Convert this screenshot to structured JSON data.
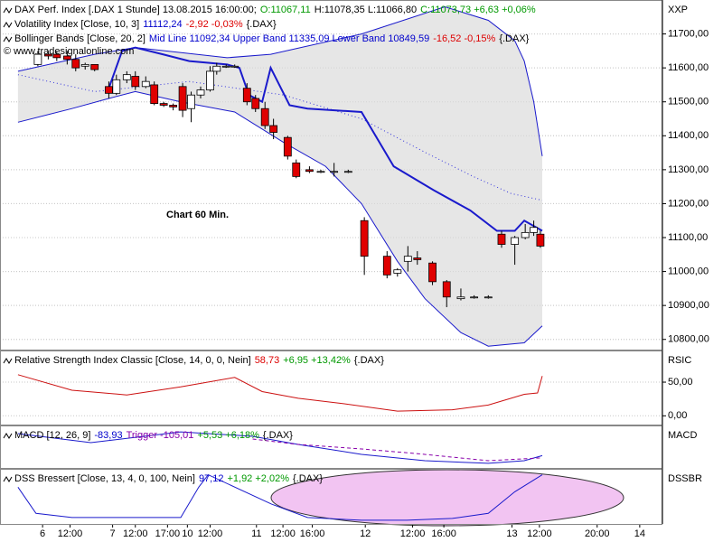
{
  "chart_data": [
    {
      "type": "candlestick",
      "headers": [
        [
          {
            "text": "DAX Perf. Index [.DAX  1 Stunde] 13.08.2015 16:00:00;",
            "color": "#000000"
          },
          {
            "text": "O:11067,11",
            "color": "#009900"
          },
          {
            "text": "H:11078,35 L:11066,80",
            "color": "#000000"
          },
          {
            "text": "C:11073,73 +6,63 +0,06%",
            "color": "#009900"
          }
        ],
        [
          {
            "text": "Volatility Index [Close, 10, 3]",
            "color": "#000000"
          },
          {
            "text": "11112,24",
            "color": "#0000cc"
          },
          {
            "text": "-2,92 -0,03%",
            "color": "#dd0000"
          },
          {
            "text": "{.DAX}",
            "color": "#000000"
          }
        ],
        [
          {
            "text": "Bollinger Bands [Close, 20, 2]",
            "color": "#000000"
          },
          {
            "text": "Mid Line 11092,34 Upper Band 11335,09 Lower Band 10849,59",
            "color": "#0000cc"
          },
          {
            "text": "-16,52 -0,15%",
            "color": "#dd0000"
          },
          {
            "text": "{.DAX}",
            "color": "#000000"
          }
        ]
      ],
      "watermark": "© www.tradesignalonline.com",
      "annotation": "Chart 60 Min.",
      "axis_code": "XXP",
      "xlim": [
        0,
        70
      ],
      "ylim": [
        10770,
        11800
      ],
      "yticks": [
        {
          "value": 10800,
          "label": "10800,00"
        },
        {
          "value": 10900,
          "label": "10900,00"
        },
        {
          "value": 11000,
          "label": "11000,00"
        },
        {
          "value": 11100,
          "label": "11100,00"
        },
        {
          "value": 11200,
          "label": "11200,00"
        },
        {
          "value": 11300,
          "label": "11300,00"
        },
        {
          "value": 11400,
          "label": "11400,00"
        },
        {
          "value": 11500,
          "label": "11500,00"
        },
        {
          "value": 11600,
          "label": "11600,00"
        },
        {
          "value": 11700,
          "label": "11700,00"
        }
      ],
      "grid": true,
      "up_color": "#ffffff",
      "down_color": "#e00000",
      "band_fill": "#e6e6e6",
      "candles": {
        "x": [
          4.0,
          5.1,
          6.0,
          7.1,
          8.0,
          9.0,
          10.0,
          11.5,
          12.3,
          13.4,
          14.3,
          15.4,
          16.3,
          17.3,
          18.3,
          19.3,
          20.2,
          21.2,
          22.2,
          22.9,
          23.9,
          24.8,
          26.1,
          27.0,
          28.0,
          28.9,
          30.4,
          31.3,
          32.7,
          33.9,
          35.3,
          36.8,
          38.5,
          40.9,
          42.0,
          43.1,
          44.1,
          45.7,
          47.2,
          48.7,
          50.1,
          51.6,
          53.0,
          54.4,
          55.5,
          56.4,
          57.1
        ],
        "open": [
          11610,
          11640,
          11640,
          11635,
          11625,
          11605,
          11610,
          11545,
          11525,
          11565,
          11575,
          11545,
          11550,
          11495,
          11490,
          11545,
          11480,
          11520,
          11535,
          11590,
          11605,
          11605,
          11540,
          11510,
          11480,
          11430,
          11395,
          11320,
          11300,
          11295,
          11295,
          11295,
          11150,
          11045,
          10995,
          11030,
          11040,
          11025,
          10970,
          10920,
          10925,
          10925,
          11110,
          11080,
          11100,
          11115,
          11110
        ],
        "high": [
          11650,
          11650,
          11650,
          11650,
          11640,
          11615,
          11610,
          11560,
          11580,
          11590,
          11590,
          11575,
          11560,
          11500,
          11495,
          11555,
          11530,
          11545,
          11605,
          11615,
          11610,
          11610,
          11555,
          11520,
          11500,
          11450,
          11400,
          11330,
          11310,
          11300,
          11320,
          11300,
          11160,
          11060,
          11010,
          11075,
          11060,
          11030,
          10975,
          10950,
          10930,
          10930,
          11120,
          11105,
          11140,
          11150,
          11120
        ],
        "low": [
          11605,
          11625,
          11620,
          11610,
          11590,
          11595,
          11590,
          11510,
          11520,
          11555,
          11535,
          11540,
          11490,
          11485,
          11475,
          11455,
          11440,
          11510,
          11530,
          11580,
          11600,
          11600,
          11490,
          11470,
          11420,
          11390,
          11330,
          11275,
          11290,
          11290,
          11280,
          11290,
          10990,
          10980,
          10985,
          11000,
          11020,
          10960,
          10895,
          10915,
          10920,
          10920,
          11070,
          11020,
          11095,
          11105,
          11070
        ],
        "close": [
          11640,
          11635,
          11630,
          11625,
          11600,
          11610,
          11595,
          11525,
          11565,
          11580,
          11545,
          11560,
          11495,
          11490,
          11485,
          11475,
          11520,
          11535,
          11590,
          11605,
          11605,
          11605,
          11500,
          11480,
          11430,
          11410,
          11340,
          11280,
          11295,
          11295,
          11295,
          11295,
          11045,
          10990,
          11005,
          11045,
          11035,
          10970,
          10925,
          10925,
          10925,
          10925,
          11080,
          11100,
          11115,
          11130,
          11075
        ]
      },
      "bands": {
        "upper": {
          "color": "#1a1acc",
          "x": [
            1.9,
            10,
            14.3,
            24,
            28.6,
            38.2,
            47,
            51.6,
            54.4,
            55.4,
            56.4,
            57.3
          ],
          "values": [
            11590,
            11640,
            11660,
            11630,
            11640,
            11700,
            11780,
            11740,
            11680,
            11620,
            11500,
            11340
          ]
        },
        "lower": {
          "color": "#1a1acc",
          "x": [
            1.9,
            7.6,
            11.5,
            14.3,
            19.1,
            24.8,
            30,
            34.4,
            38.2,
            42,
            44.9,
            48.7,
            51.6,
            55.4,
            57.3
          ],
          "values": [
            11440,
            11480,
            11510,
            11530,
            11500,
            11470,
            11380,
            11310,
            11200,
            11030,
            10920,
            10820,
            10780,
            10790,
            10840
          ]
        }
      },
      "series": [
        {
          "color": "#3333dd",
          "style": "dotted",
          "x": [
            1.9,
            10,
            20,
            30,
            38.2,
            45,
            50,
            54,
            57.3
          ],
          "values": [
            11580,
            11530,
            11560,
            11520,
            11450,
            11350,
            11280,
            11230,
            11210
          ]
        },
        {
          "color": "#1a1acc",
          "style": "thick",
          "x": [
            11.5,
            12.9,
            14.3,
            17.2,
            20,
            24,
            25.3,
            26.3,
            27.7,
            28.6,
            30.6,
            32.5,
            38.2,
            41.6,
            45.8,
            49.7,
            52.5,
            54.4,
            55.4,
            57.3
          ],
          "values": [
            11540,
            11650,
            11660,
            11640,
            11620,
            11610,
            11600,
            11520,
            11500,
            11600,
            11490,
            11480,
            11470,
            11310,
            11240,
            11180,
            11120,
            11120,
            11150,
            11120
          ]
        }
      ]
    },
    {
      "type": "line",
      "headers": [
        [
          {
            "text": "Relative Strength Index Classic [Close, 14, 0, 0, Nein]",
            "color": "#000000"
          },
          {
            "text": "58,73",
            "color": "#dd0000"
          },
          {
            "text": "+6,95 +13,42%",
            "color": "#009900"
          },
          {
            "text": "{.DAX}",
            "color": "#000000"
          }
        ]
      ],
      "axis_code": "RSIC",
      "xlim": [
        0,
        70
      ],
      "ylim": [
        -13,
        97
      ],
      "yticks": [
        {
          "value": 0,
          "label": "0,00"
        },
        {
          "value": 50,
          "label": "50,00"
        }
      ],
      "grid": true,
      "series": [
        {
          "color": "#cc1111",
          "style": "solid",
          "x": [
            1.9,
            7.6,
            13.4,
            19.1,
            24.8,
            27.7,
            31.5,
            36.3,
            42,
            47.8,
            51.6,
            55.4,
            56.8,
            57.3
          ],
          "values": [
            61,
            38,
            31,
            43,
            57,
            36,
            26,
            18,
            7,
            9,
            16,
            32,
            34,
            59
          ]
        }
      ]
    },
    {
      "type": "line",
      "headers": [
        [
          {
            "text": "MACD [12, 26, 9]",
            "color": "#000000"
          },
          {
            "text": "-83,93",
            "color": "#0000cc"
          },
          {
            "text": "Trigger -105,01",
            "color": "#8800aa"
          },
          {
            "text": "+5,53 +6,18%",
            "color": "#009900"
          },
          {
            "text": "{.DAX}",
            "color": "#000000"
          }
        ]
      ],
      "axis_code": "MACD",
      "xlim": [
        0,
        70
      ],
      "ylim": [
        -200,
        200
      ],
      "series": [
        {
          "color": "#1a1acc",
          "style": "solid",
          "x": [
            1.9,
            9.6,
            19.1,
            26.7,
            31.5,
            38.2,
            44.9,
            51.6,
            55.4,
            57.3
          ],
          "values": [
            123,
            38,
            140,
            98,
            21,
            -72,
            -132,
            -157,
            -132,
            -84
          ]
        },
        {
          "color": "#8800aa",
          "style": "dashed",
          "x": [
            26.7,
            31.5,
            38.2,
            43.9,
            51.6,
            57.3
          ],
          "values": [
            72,
            21,
            -21,
            -64,
            -132,
            -105
          ]
        }
      ]
    },
    {
      "type": "line",
      "headers": [
        [
          {
            "text": "DSS Bressert [Close, 13, 4, 0, 100, Nein]",
            "color": "#000000"
          },
          {
            "text": "97,12",
            "color": "#0000cc"
          },
          {
            "text": "+1,92 +2,02%",
            "color": "#009900"
          },
          {
            "text": "{.DAX}",
            "color": "#000000"
          }
        ]
      ],
      "axis_code": "DSSBR",
      "xlim": [
        0,
        70
      ],
      "ylim": [
        -10,
        110
      ],
      "xticks": [
        {
          "value": 4.5,
          "label": "6"
        },
        {
          "value": 7.4,
          "label": "12:00"
        },
        {
          "value": 11.9,
          "label": "7"
        },
        {
          "value": 14.3,
          "label": "12:00"
        },
        {
          "value": 17.7,
          "label": "17:00"
        },
        {
          "value": 19.8,
          "label": "10"
        },
        {
          "value": 22.2,
          "label": "12:00"
        },
        {
          "value": 27.1,
          "label": "11"
        },
        {
          "value": 29.9,
          "label": "12:00"
        },
        {
          "value": 33.0,
          "label": "16:00"
        },
        {
          "value": 38.6,
          "label": "12"
        },
        {
          "value": 43.6,
          "label": "12:00"
        },
        {
          "value": 46.9,
          "label": "16:00"
        },
        {
          "value": 54.1,
          "label": "13"
        },
        {
          "value": 57.0,
          "label": "12:00"
        },
        {
          "value": 63.1,
          "label": "20:00"
        },
        {
          "value": 67.6,
          "label": "14"
        }
      ],
      "series": [
        {
          "color": "#1a1acc",
          "style": "solid",
          "x": [
            1.9,
            3.8,
            7.6,
            9.6,
            19.1,
            21,
            22,
            28.7,
            32.5,
            38.2,
            43,
            47.8,
            51.6,
            54.4,
            57.3
          ],
          "values": [
            70,
            13,
            4,
            4,
            4,
            70,
            97,
            33,
            4,
            -2,
            -2,
            2,
            13,
            60,
            97
          ]
        }
      ]
    }
  ]
}
